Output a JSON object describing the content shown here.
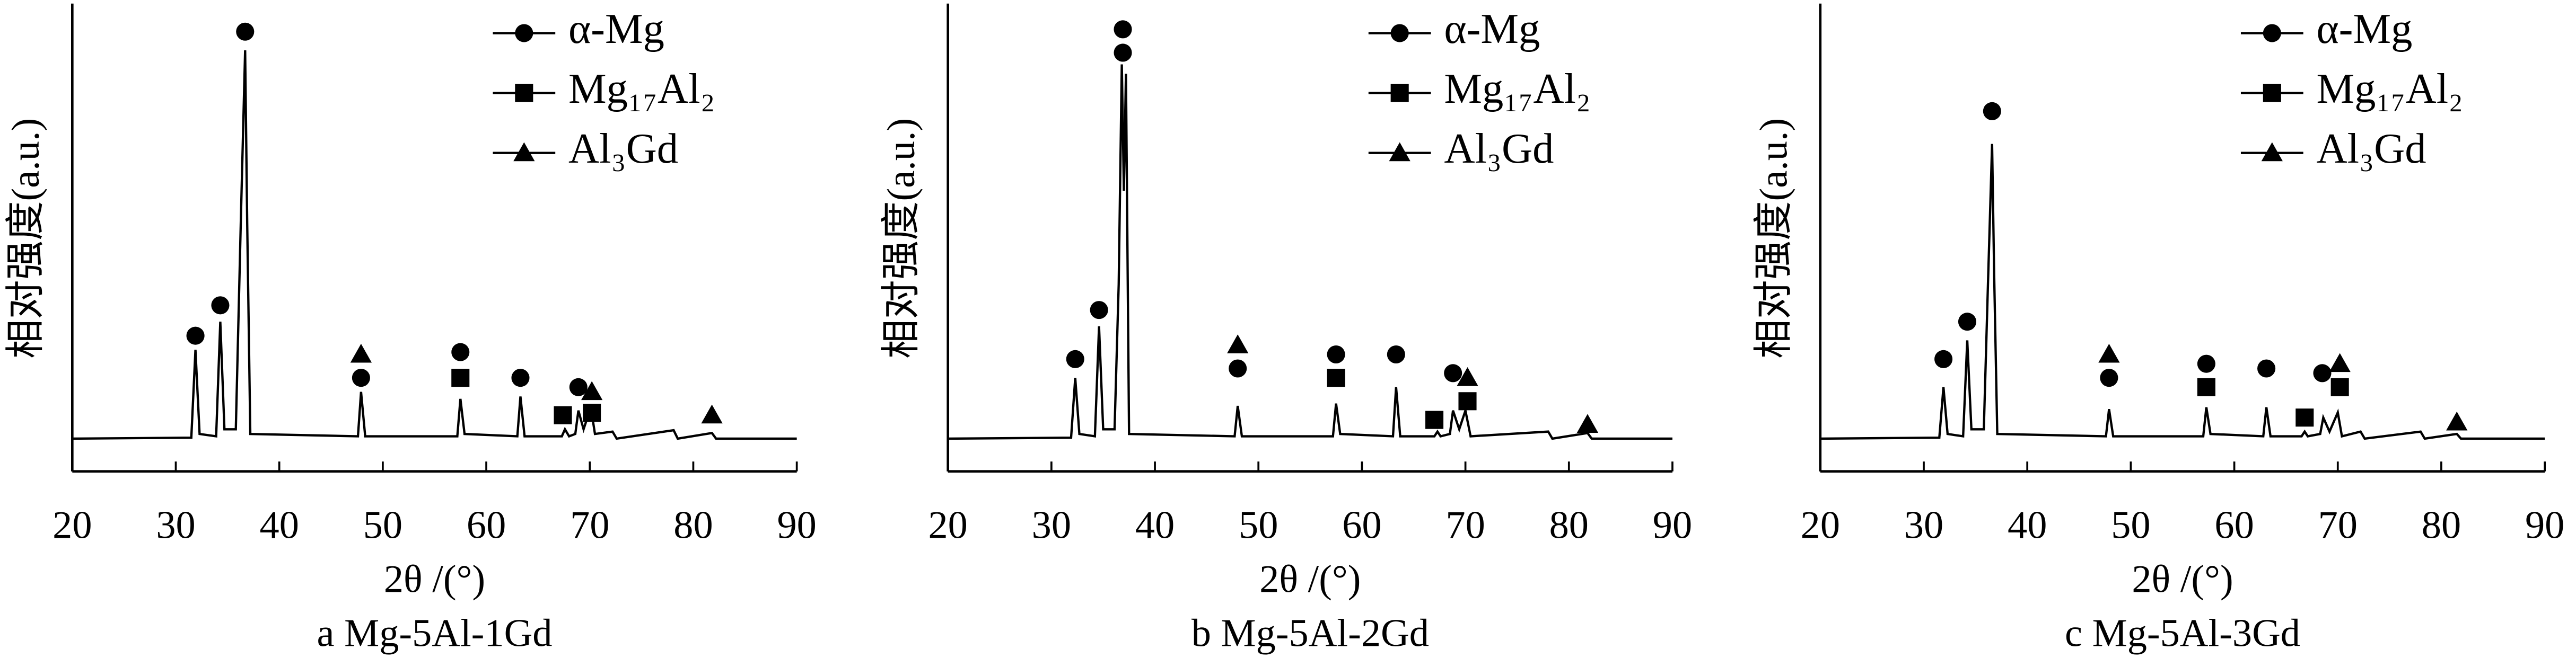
{
  "chart_data": [
    {
      "type": "line",
      "caption": "a Mg-5Al-1Gd",
      "x_label": "2θ /(°)",
      "y_label": "相对强度(a.u.)",
      "xlim": [
        20,
        90
      ],
      "xticks": [
        20,
        30,
        40,
        50,
        60,
        70,
        80,
        90
      ],
      "ylim": [
        0,
        100
      ],
      "pattern": {
        "color": "#000000",
        "x": [
          20,
          31.5,
          31.9,
          32.3,
          33.9,
          34.3,
          34.7,
          35.8,
          36.3,
          36.7,
          36.9,
          37.2,
          47.6,
          47.9,
          48.3,
          57.2,
          57.5,
          57.9,
          63.0,
          63.3,
          63.7,
          67.3,
          67.6,
          68.0,
          68.6,
          68.9,
          69.4,
          70.1,
          70.5,
          72.2,
          72.6,
          78.1,
          78.5,
          81.8,
          82.2,
          90
        ],
        "values": [
          7,
          7.2,
          26,
          8,
          7.5,
          32,
          9,
          9,
          55,
          90,
          53,
          8,
          7.5,
          17,
          7.5,
          7.5,
          15.5,
          8,
          7.5,
          16,
          7.5,
          7.5,
          9,
          7.5,
          8,
          13,
          9,
          13.7,
          8,
          8.5,
          7,
          8.8,
          7,
          8.2,
          7,
          7
        ]
      },
      "legend": "upper right",
      "series": [
        {
          "name": "α-Mg",
          "marker": "circle",
          "color": "#000000",
          "x": [
            31.9,
            34.3,
            36.7,
            47.9,
            57.5,
            63.3,
            68.9
          ],
          "values": [
            29,
            35.5,
            94,
            20,
            25.5,
            20,
            18
          ]
        },
        {
          "name": "Mg₁₇Al₂",
          "marker": "square",
          "color": "#000000",
          "x": [
            57.5,
            67.4,
            70.2
          ],
          "values": [
            20,
            12,
            12.5
          ]
        },
        {
          "name": "Al₃Gd",
          "marker": "triangle",
          "color": "#000000",
          "x": [
            47.9,
            70.2,
            81.8
          ],
          "values": [
            25,
            17,
            12
          ]
        }
      ]
    },
    {
      "type": "line",
      "caption": "b Mg-5Al-2Gd",
      "x_label": "2θ /(°)",
      "y_label": "相对强度(a.u.)",
      "xlim": [
        20,
        90
      ],
      "xticks": [
        20,
        30,
        40,
        50,
        60,
        70,
        80,
        90
      ],
      "ylim": [
        0,
        100
      ],
      "pattern": {
        "color": "#000000",
        "x": [
          20,
          31.9,
          32.3,
          32.7,
          34.2,
          34.6,
          35.0,
          36.1,
          36.5,
          36.8,
          37.0,
          37.2,
          37.5,
          47.7,
          48.0,
          48.4,
          57.2,
          57.5,
          57.9,
          63.0,
          63.3,
          63.7,
          67.0,
          67.3,
          67.6,
          68.5,
          68.8,
          69.4,
          70.0,
          70.5,
          78.0,
          78.4,
          81.8,
          82.2,
          90
        ],
        "values": [
          7,
          7.2,
          20,
          8,
          7.5,
          31,
          9,
          9,
          40,
          87,
          60,
          85,
          8,
          7.5,
          14,
          7.5,
          7.5,
          14.5,
          8,
          7.5,
          18,
          7.5,
          7.5,
          8.5,
          7.5,
          8,
          13,
          9,
          13,
          7.5,
          8.5,
          7,
          8.2,
          7,
          7
        ]
      },
      "legend": "upper right",
      "series": [
        {
          "name": "α-Mg",
          "marker": "circle",
          "color": "#000000",
          "x": [
            32.3,
            34.6,
            36.9,
            36.9,
            48,
            57.5,
            63.3,
            68.8
          ],
          "values": [
            24,
            34.5,
            94.5,
            89.5,
            22,
            25,
            25,
            21
          ]
        },
        {
          "name": "Mg₁₇Al₂",
          "marker": "square",
          "color": "#000000",
          "x": [
            57.5,
            67,
            70.2
          ],
          "values": [
            20,
            11,
            15
          ]
        },
        {
          "name": "Al₃Gd",
          "marker": "triangle",
          "color": "#000000",
          "x": [
            48,
            70.2,
            81.8
          ],
          "values": [
            27,
            20,
            10
          ]
        }
      ]
    },
    {
      "type": "line",
      "caption": "c Mg-5Al-3Gd",
      "x_label": "2θ /(°)",
      "y_label": "相对强度(a.u.)",
      "xlim": [
        20,
        90
      ],
      "xticks": [
        20,
        30,
        40,
        50,
        60,
        70,
        80,
        90
      ],
      "ylim": [
        0,
        100
      ],
      "pattern": {
        "color": "#000000",
        "x": [
          20,
          31.5,
          31.9,
          32.3,
          33.8,
          34.2,
          34.6,
          35.8,
          36.2,
          36.6,
          36.8,
          37.1,
          47.6,
          47.9,
          48.3,
          57.0,
          57.3,
          57.7,
          62.8,
          63.1,
          63.5,
          66.5,
          66.8,
          67.1,
          68.3,
          68.6,
          69.2,
          70.0,
          70.4,
          72.2,
          72.6,
          78.0,
          78.4,
          81.5,
          81.9,
          90
        ],
        "values": [
          7,
          7.2,
          18,
          8,
          7.5,
          28,
          9,
          9,
          40,
          70,
          42,
          8,
          7.5,
          13.3,
          7.5,
          7.5,
          13.7,
          8,
          7.5,
          13.7,
          7.5,
          7.5,
          8.5,
          7.5,
          8,
          11.5,
          8.5,
          12.6,
          7.5,
          8.5,
          7,
          8.5,
          7,
          8,
          7,
          7
        ]
      },
      "legend": "upper right",
      "series": [
        {
          "name": "α-Mg",
          "marker": "circle",
          "color": "#000000",
          "x": [
            31.9,
            34.2,
            36.6,
            47.9,
            57.3,
            63.1,
            68.5
          ],
          "values": [
            24,
            32,
            77,
            20,
            23,
            22,
            21
          ]
        },
        {
          "name": "Mg₁₇Al₂",
          "marker": "square",
          "color": "#000000",
          "x": [
            57.3,
            66.8,
            70.2
          ],
          "values": [
            18,
            11.5,
            18
          ]
        },
        {
          "name": "Al₃Gd",
          "marker": "triangle",
          "color": "#000000",
          "x": [
            47.9,
            70.2,
            81.5
          ],
          "values": [
            25,
            23,
            10.5
          ]
        }
      ]
    }
  ]
}
